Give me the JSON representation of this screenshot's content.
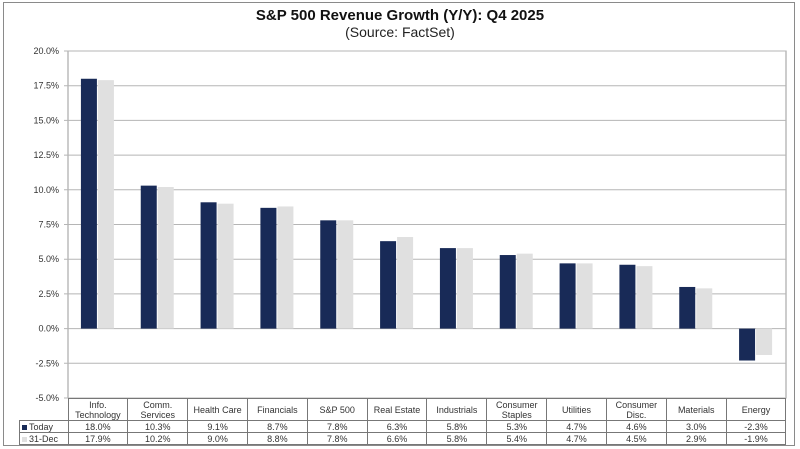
{
  "chart_data": {
    "type": "bar",
    "title": "S&P 500 Revenue Growth (Y/Y):  Q4 2025",
    "subtitle": "(Source: FactSet)",
    "xlabel": "",
    "ylabel": "",
    "ylim": [
      -5.0,
      20.0
    ],
    "yticks": [
      20.0,
      17.5,
      15.0,
      12.5,
      10.0,
      7.5,
      5.0,
      2.5,
      0.0,
      -2.5,
      -5.0
    ],
    "ytick_labels": [
      "20.0%",
      "17.5%",
      "15.0%",
      "12.5%",
      "10.0%",
      "7.5%",
      "5.0%",
      "2.5%",
      "0.0%",
      "-2.5%",
      "-5.0%"
    ],
    "grid": true,
    "legend_placement": "data-table-left",
    "categories": [
      "Info. Technology",
      "Comm. Services",
      "Health Care",
      "Financials",
      "S&P 500",
      "Real Estate",
      "Industrials",
      "Consumer Staples",
      "Utilities",
      "Consumer Disc.",
      "Materials",
      "Energy"
    ],
    "category_lines": [
      [
        "Info.",
        "Technology"
      ],
      [
        "Comm.",
        "Services"
      ],
      [
        "Health Care"
      ],
      [
        "Financials"
      ],
      [
        "S&P 500"
      ],
      [
        "Real Estate"
      ],
      [
        "Industrials"
      ],
      [
        "Consumer",
        "Staples"
      ],
      [
        "Utilities"
      ],
      [
        "Consumer",
        "Disc."
      ],
      [
        "Materials"
      ],
      [
        "Energy"
      ]
    ],
    "series": [
      {
        "name": "Today",
        "color": "#182a57",
        "values": [
          18.0,
          10.3,
          9.1,
          8.7,
          7.8,
          6.3,
          5.8,
          5.3,
          4.7,
          4.6,
          3.0,
          -2.3
        ],
        "labels": [
          "18.0%",
          "10.3%",
          "9.1%",
          "8.7%",
          "7.8%",
          "6.3%",
          "5.8%",
          "5.3%",
          "4.7%",
          "4.6%",
          "3.0%",
          "-2.3%"
        ]
      },
      {
        "name": "31-Dec",
        "color": "#e0e0e0",
        "values": [
          17.9,
          10.2,
          9.0,
          8.8,
          7.8,
          6.6,
          5.8,
          5.4,
          4.7,
          4.5,
          2.9,
          -1.9
        ],
        "labels": [
          "17.9%",
          "10.2%",
          "9.0%",
          "8.8%",
          "7.8%",
          "6.6%",
          "5.8%",
          "5.4%",
          "4.7%",
          "4.5%",
          "2.9%",
          "-1.9%"
        ]
      }
    ]
  }
}
